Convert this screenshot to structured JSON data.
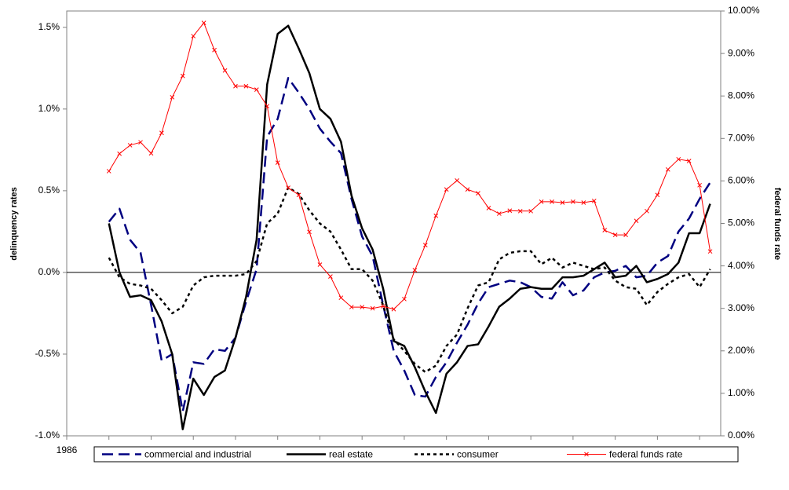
{
  "chart_data": {
    "type": "line",
    "y_label": "delinquency rates",
    "y2_label": "federal funds rate",
    "x": [
      1987,
      1987.25,
      1987.5,
      1987.75,
      1988,
      1988.25,
      1988.5,
      1988.75,
      1989,
      1989.25,
      1989.5,
      1989.75,
      1990,
      1990.25,
      1990.5,
      1990.75,
      1991,
      1991.25,
      1991.5,
      1991.75,
      1992,
      1992.25,
      1992.5,
      1992.75,
      1993,
      1993.25,
      1993.5,
      1993.75,
      1994,
      1994.25,
      1994.5,
      1994.75,
      1995,
      1995.25,
      1995.5,
      1995.75,
      1996,
      1996.25,
      1996.5,
      1996.75,
      1997,
      1997.25,
      1997.5,
      1997.75,
      1998,
      1998.25,
      1998.5,
      1998.75,
      1999,
      1999.25,
      1999.5,
      1999.75,
      2000,
      2000.25,
      2000.5,
      2000.75,
      2001,
      2001.25
    ],
    "xlim": [
      1986,
      2001.5
    ],
    "xticks": [
      1986,
      1987,
      1988,
      1989,
      1990,
      1991,
      1992,
      1993,
      1994,
      1995,
      1996,
      1997,
      1998,
      1999,
      2000,
      2001
    ],
    "ylim": [
      -1,
      1.6
    ],
    "yticks": [
      {
        "value": -1,
        "label": "-1.0%"
      },
      {
        "value": -0.5,
        "label": "-0.5%"
      },
      {
        "value": 0,
        "label": "0.0%"
      },
      {
        "value": 0.5,
        "label": "0.5%"
      },
      {
        "value": 1,
        "label": "1.0%"
      },
      {
        "value": 1.5,
        "label": "1.5%"
      }
    ],
    "y2lim": [
      0,
      10
    ],
    "y2ticks": [
      {
        "value": 0,
        "label": "0.00%"
      },
      {
        "value": 1,
        "label": "1.00%"
      },
      {
        "value": 2,
        "label": "2.00%"
      },
      {
        "value": 3,
        "label": "3.00%"
      },
      {
        "value": 4,
        "label": "4.00%"
      },
      {
        "value": 5,
        "label": "5.00%"
      },
      {
        "value": 6,
        "label": "6.00%"
      },
      {
        "value": 7,
        "label": "7.00%"
      },
      {
        "value": 8,
        "label": "8.00%"
      },
      {
        "value": 9,
        "label": "9.00%"
      },
      {
        "value": 10,
        "label": "10.00%"
      }
    ],
    "series": [
      {
        "name": "commercial and industrial",
        "color": "#000080",
        "dash": "dashed",
        "values": [
          0.31,
          0.39,
          0.2,
          0.12,
          -0.2,
          -0.54,
          -0.5,
          -0.85,
          -0.55,
          -0.56,
          -0.47,
          -0.48,
          -0.4,
          -0.18,
          0.02,
          0.83,
          0.94,
          1.19,
          1.1,
          1.0,
          0.88,
          0.8,
          0.73,
          0.45,
          0.22,
          0.1,
          -0.2,
          -0.48,
          -0.6,
          -0.75,
          -0.76,
          -0.64,
          -0.55,
          -0.43,
          -0.32,
          -0.19,
          -0.09,
          -0.07,
          -0.05,
          -0.06,
          -0.09,
          -0.15,
          -0.16,
          -0.06,
          -0.14,
          -0.11,
          -0.03,
          0.0,
          0.01,
          0.04,
          -0.03,
          -0.02,
          0.06,
          0.1,
          0.25,
          0.33,
          0.45,
          0.55
        ]
      },
      {
        "name": "real estate",
        "color": "#000000",
        "dash": "solid",
        "values": [
          0.3,
          0.0,
          -0.15,
          -0.14,
          -0.17,
          -0.3,
          -0.5,
          -0.96,
          -0.65,
          -0.75,
          -0.64,
          -0.6,
          -0.4,
          -0.15,
          0.2,
          1.15,
          1.46,
          1.51,
          1.37,
          1.22,
          1.0,
          0.94,
          0.8,
          0.47,
          0.27,
          0.14,
          -0.1,
          -0.42,
          -0.45,
          -0.58,
          -0.73,
          -0.86,
          -0.62,
          -0.55,
          -0.45,
          -0.44,
          -0.33,
          -0.21,
          -0.16,
          -0.1,
          -0.09,
          -0.1,
          -0.1,
          -0.03,
          -0.03,
          -0.02,
          0.02,
          0.06,
          -0.03,
          -0.02,
          0.04,
          -0.06,
          -0.04,
          -0.01,
          0.06,
          0.24,
          0.24,
          0.42
        ]
      },
      {
        "name": "consumer",
        "color": "#000000",
        "dash": "dotted",
        "values": [
          0.09,
          -0.03,
          -0.07,
          -0.08,
          -0.1,
          -0.17,
          -0.25,
          -0.21,
          -0.08,
          -0.03,
          -0.02,
          -0.02,
          -0.02,
          -0.01,
          0.07,
          0.3,
          0.36,
          0.52,
          0.48,
          0.38,
          0.3,
          0.25,
          0.14,
          0.02,
          0.02,
          -0.05,
          -0.2,
          -0.41,
          -0.48,
          -0.56,
          -0.61,
          -0.57,
          -0.45,
          -0.38,
          -0.22,
          -0.08,
          -0.06,
          0.08,
          0.12,
          0.13,
          0.13,
          0.05,
          0.09,
          0.03,
          0.06,
          0.04,
          0.02,
          0.03,
          -0.05,
          -0.09,
          -0.1,
          -0.2,
          -0.12,
          -0.07,
          -0.03,
          -0.01,
          -0.09,
          0.02
        ]
      },
      {
        "name": "federal funds rate",
        "color": "#ff0000",
        "dash": "thin",
        "marker": "x",
        "axis": "y2",
        "values": [
          6.23,
          6.64,
          6.84,
          6.91,
          6.65,
          7.13,
          7.97,
          8.47,
          9.41,
          9.72,
          9.08,
          8.6,
          8.23,
          8.23,
          8.15,
          7.76,
          6.43,
          5.84,
          5.67,
          4.8,
          4.03,
          3.75,
          3.25,
          3.03,
          3.03,
          3.0,
          3.05,
          2.98,
          3.22,
          3.9,
          4.49,
          5.18,
          5.8,
          6.01,
          5.8,
          5.71,
          5.36,
          5.23,
          5.3,
          5.29,
          5.29,
          5.51,
          5.51,
          5.49,
          5.51,
          5.49,
          5.53,
          4.84,
          4.73,
          4.73,
          5.06,
          5.29,
          5.67,
          6.27,
          6.51,
          6.47,
          5.9,
          4.34
        ]
      }
    ],
    "zero_line": true,
    "legend": "bottom"
  }
}
